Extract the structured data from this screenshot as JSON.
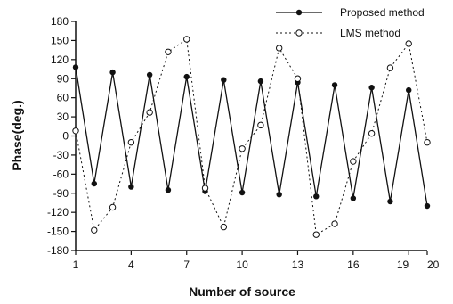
{
  "chart_data": {
    "type": "line",
    "title": "",
    "xlabel": "Number of source",
    "ylabel": "Phase(deg.)",
    "xlim": [
      1,
      20
    ],
    "ylim": [
      -180,
      180
    ],
    "x_ticks": [
      1,
      4,
      7,
      10,
      13,
      16,
      19,
      20
    ],
    "x_tick_labels": [
      "1",
      "4",
      "7",
      "10",
      "13",
      "16",
      "19",
      "20"
    ],
    "y_ticks": [
      180,
      150,
      120,
      90,
      60,
      30,
      0,
      -30,
      -60,
      -90,
      -120,
      -150,
      -180
    ],
    "y_tick_labels": [
      "180",
      "150",
      "120",
      "90",
      "60",
      "30",
      "0",
      "-30",
      "-60",
      "-90",
      "-120",
      "-150",
      "-180"
    ],
    "grid": false,
    "legend_position": "top-right",
    "x": [
      1,
      2,
      3,
      4,
      5,
      6,
      7,
      8,
      9,
      10,
      11,
      12,
      13,
      14,
      15,
      16,
      17,
      18,
      19,
      20
    ],
    "series": [
      {
        "name": "Proposed method",
        "style": "solid",
        "marker": "filled-circle",
        "values": [
          108,
          -75,
          100,
          -80,
          96,
          -85,
          93,
          -87,
          88,
          -89,
          86,
          -92,
          84,
          -95,
          80,
          -98,
          76,
          -103,
          72,
          -110
        ]
      },
      {
        "name": "LMS method",
        "style": "dotted",
        "marker": "open-circle",
        "values": [
          8,
          -148,
          -112,
          -10,
          37,
          132,
          152,
          -82,
          -143,
          -20,
          17,
          138,
          90,
          -155,
          -138,
          -40,
          4,
          107,
          145,
          -10
        ]
      }
    ]
  }
}
